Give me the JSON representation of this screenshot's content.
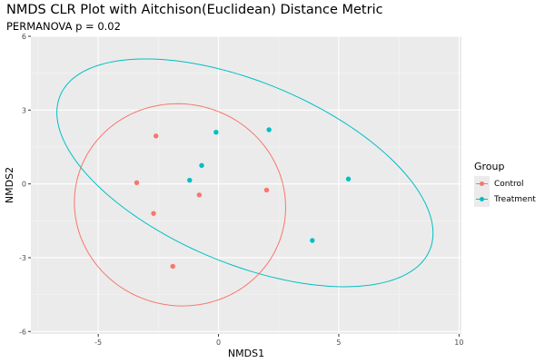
{
  "chart_data": {
    "type": "scatter",
    "title": "NMDS CLR Plot with Aitchison(Euclidean) Distance Metric",
    "subtitle": "PERMANOVA p = 0.02",
    "xlabel": "NMDS1",
    "ylabel": "NMDS2",
    "xlim": [
      -7.8,
      10.1
    ],
    "ylim": [
      -6.1,
      6.0
    ],
    "x_ticks": [
      -5,
      0,
      5,
      10
    ],
    "y_ticks": [
      -6,
      -3,
      0,
      3,
      6
    ],
    "x_tick_labels": [
      "-5",
      "0",
      "5",
      "10"
    ],
    "y_tick_labels": [
      "-6",
      "-3",
      "0",
      "3",
      "6"
    ],
    "grid": true,
    "legend": {
      "title": "Group",
      "placement": "right"
    },
    "series": [
      {
        "name": "Control",
        "color": "#F8766D",
        "points": [
          {
            "x": -2.6,
            "y": 1.95
          },
          {
            "x": -3.4,
            "y": 0.05
          },
          {
            "x": -2.7,
            "y": -1.2
          },
          {
            "x": -0.8,
            "y": -0.45
          },
          {
            "x": -1.9,
            "y": -3.35
          },
          {
            "x": 2.0,
            "y": -0.25
          }
        ],
        "ellipse": {
          "cx": -1.6,
          "cy": -0.85,
          "rx": 4.4,
          "ry": 4.1,
          "rotation_deg": -10
        }
      },
      {
        "name": "Treatment",
        "color": "#00BFC4",
        "points": [
          {
            "x": -0.1,
            "y": 2.1
          },
          {
            "x": 2.1,
            "y": 2.2
          },
          {
            "x": -0.7,
            "y": 0.75
          },
          {
            "x": -1.2,
            "y": 0.15
          },
          {
            "x": 5.4,
            "y": 0.2
          },
          {
            "x": 3.9,
            "y": -2.3
          }
        ],
        "ellipse": {
          "cx": 1.1,
          "cy": 0.45,
          "rx": 8.3,
          "ry": 3.7,
          "rotation_deg": -22
        }
      }
    ]
  }
}
